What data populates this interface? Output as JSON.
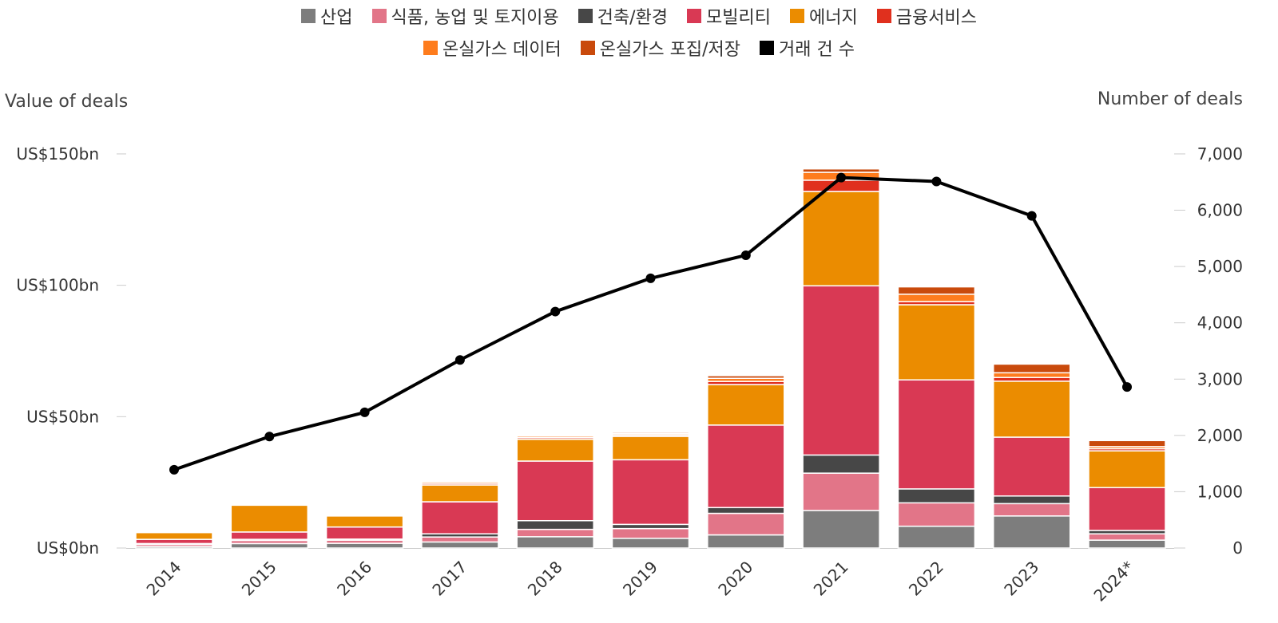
{
  "legend": {
    "rows": [
      [
        {
          "key": "industry",
          "label": "산업"
        },
        {
          "key": "food",
          "label": "식품, 농업 및 토지이용"
        },
        {
          "key": "building",
          "label": "건축/환경"
        },
        {
          "key": "mobility",
          "label": "모빌리티"
        },
        {
          "key": "energy",
          "label": "에너지"
        },
        {
          "key": "finance",
          "label": "금융서비스"
        }
      ],
      [
        {
          "key": "ghg_data",
          "label": "온실가스 데이터"
        },
        {
          "key": "ccs",
          "label": "온실가스 포집/저장"
        },
        {
          "key": "deals",
          "label": "거래 건 수"
        }
      ]
    ]
  },
  "chart_data": {
    "type": "bar",
    "stacked": true,
    "categories": [
      "2014",
      "2015",
      "2016",
      "2017",
      "2018",
      "2019",
      "2020",
      "2021",
      "2022",
      "2023",
      "2024*"
    ],
    "ylabel": "Value of deals",
    "y2label": "Number of deals",
    "ylim": [
      0,
      160
    ],
    "y2lim": [
      0,
      7466.7
    ],
    "y_ticks": [
      0,
      50,
      100,
      150
    ],
    "y_tick_labels": [
      "US$0bn",
      "US$50bn",
      "US$100bn",
      "US$150bn"
    ],
    "y2_ticks": [
      0,
      1000,
      2000,
      3000,
      4000,
      5000,
      6000,
      7000
    ],
    "y2_tick_labels": [
      "0",
      "1,000",
      "2,000",
      "3,000",
      "4,000",
      "5,000",
      "6,000",
      "7,000"
    ],
    "colors": {
      "industry": "#7d7d7d",
      "food": "#e27588",
      "building": "#474747",
      "mobility": "#d93954",
      "energy": "#eb8c00",
      "finance": "#e0301e",
      "ghg_data": "#fe7c1d",
      "ccs": "#c94a0c",
      "deals": "#000000"
    },
    "series": [
      {
        "key": "industry",
        "name": "산업",
        "values": [
          0.6,
          1.7,
          1.8,
          2.3,
          4.3,
          3.7,
          5.0,
          14.3,
          8.3,
          12.2,
          3.0
        ]
      },
      {
        "key": "food",
        "name": "식품, 농업 및 토지이용",
        "values": [
          0.8,
          1.2,
          1.2,
          1.9,
          2.8,
          3.7,
          8.2,
          14.2,
          8.9,
          4.7,
          2.4
        ]
      },
      {
        "key": "building",
        "name": "건축/환경",
        "values": [
          0.3,
          0.4,
          0.4,
          1.2,
          3.3,
          1.6,
          2.2,
          6.9,
          5.3,
          2.9,
          1.3
        ]
      },
      {
        "key": "mobility",
        "name": "모빌리티",
        "values": [
          1.6,
          2.8,
          4.6,
          12.2,
          22.7,
          24.6,
          31.4,
          64.4,
          41.5,
          22.4,
          16.3
        ]
      },
      {
        "key": "energy",
        "name": "에너지",
        "values": [
          2.6,
          10.2,
          4.2,
          6.4,
          8.3,
          8.9,
          15.4,
          35.9,
          28.6,
          21.3,
          14.0
        ]
      },
      {
        "key": "finance",
        "name": "금융서비스",
        "values": [
          0.2,
          0.3,
          0.2,
          0.6,
          0.6,
          0.5,
          1.2,
          4.3,
          1.2,
          1.4,
          0.8
        ]
      },
      {
        "key": "ghg_data",
        "name": "온실가스 데이터",
        "values": [
          0.2,
          0.3,
          0.2,
          0.6,
          0.6,
          0.5,
          1.2,
          3.0,
          2.8,
          1.8,
          0.8
        ]
      },
      {
        "key": "ccs",
        "name": "온실가스 포집/저장",
        "values": [
          0.1,
          0.1,
          0.1,
          0.4,
          0.4,
          0.5,
          1.0,
          1.3,
          2.8,
          3.3,
          2.3
        ]
      }
    ],
    "line": {
      "key": "deals",
      "name": "거래 건 수",
      "axis": "right",
      "values": [
        1390,
        1980,
        2410,
        3340,
        4200,
        4790,
        5200,
        6580,
        6510,
        5900,
        2860
      ]
    }
  }
}
